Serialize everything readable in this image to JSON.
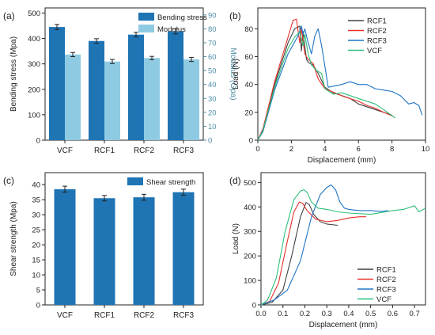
{
  "colors": {
    "bending": "#1f74b4",
    "modulus": "#8ecbe2",
    "modulus_axis": "#4f8ea6",
    "shear": "#1f74b4",
    "RCF1": "#404040",
    "RCF2": "#e8302a",
    "RCF3": "#1f74c4",
    "VCF": "#2fc07a"
  },
  "chart_data": [
    {
      "panel": "(a)",
      "type": "bar",
      "categories": [
        "VCF",
        "RCF1",
        "RCF2",
        "RCF3"
      ],
      "xlabel": "",
      "ylabel": "Bending stress (Mpa)",
      "ylabel2": "Modulus (Gpa)",
      "ylim": [
        0,
        520
      ],
      "y2lim": [
        0,
        95
      ],
      "yticks": [
        0,
        100,
        200,
        300,
        400,
        500
      ],
      "y2ticks": [
        0,
        10,
        20,
        30,
        40,
        50,
        60,
        70,
        80,
        90
      ],
      "legend_placement": "top-right",
      "series": [
        {
          "name": "Bending stress",
          "axis": "left",
          "values": [
            445,
            390,
            415,
            428
          ],
          "errors": [
            10,
            9,
            9,
            10
          ]
        },
        {
          "name": "Modulus",
          "axis": "right",
          "values": [
            61.5,
            56.5,
            59,
            58
          ],
          "errors": [
            1.5,
            1.5,
            1.2,
            1.5
          ]
        }
      ]
    },
    {
      "panel": "(b)",
      "type": "line",
      "xlabel": "Displacement (mm)",
      "ylabel": "Load (N)",
      "xlim": [
        0,
        10
      ],
      "ylim": [
        0,
        95
      ],
      "xticks": [
        0,
        2,
        4,
        6,
        8,
        10
      ],
      "yticks": [
        0,
        20,
        40,
        60,
        80
      ],
      "legend_placement": "top-right",
      "series": [
        {
          "name": "RCF1",
          "x": [
            0,
            0.3,
            1,
            1.8,
            2.2,
            2.5,
            2.6,
            2.7,
            2.9,
            3.0,
            3.3,
            3.6,
            4.0,
            4.5,
            5,
            5.5,
            6,
            6.5,
            7,
            7.5,
            8
          ],
          "y": [
            0,
            8,
            40,
            70,
            80,
            82,
            64,
            78,
            58,
            56,
            54,
            48,
            38,
            34,
            32,
            30,
            26,
            24,
            22,
            20,
            18
          ]
        },
        {
          "name": "RCF2",
          "x": [
            0,
            0.3,
            1,
            1.8,
            2.1,
            2.3,
            2.5,
            2.6,
            2.8,
            3.0,
            3.3,
            3.6,
            4.0,
            4.6,
            5.2,
            6,
            6.5,
            7,
            7.5,
            8.1
          ],
          "y": [
            0,
            8,
            42,
            74,
            86,
            87,
            70,
            80,
            62,
            58,
            55,
            44,
            37,
            34,
            31,
            28,
            25,
            23,
            20,
            17
          ]
        },
        {
          "name": "RCF3",
          "x": [
            0,
            0.3,
            1,
            1.8,
            2.4,
            2.6,
            2.7,
            2.8,
            3.0,
            3.2,
            3.4,
            3.6,
            3.8,
            4.2,
            5,
            5.5,
            6,
            6.5,
            7,
            7.5,
            8,
            8.5,
            9,
            9.3,
            9.6,
            9.8
          ],
          "y": [
            0,
            6,
            36,
            62,
            75,
            82,
            76,
            80,
            70,
            62,
            75,
            80,
            68,
            38,
            40,
            42,
            40,
            40,
            37,
            36,
            35,
            32,
            26,
            27,
            25,
            18
          ]
        },
        {
          "name": "VCF",
          "x": [
            0,
            0.3,
            1,
            1.8,
            2.2,
            2.5,
            2.7,
            2.8,
            3.0,
            3.2,
            3.5,
            3.8,
            4.0,
            4.5,
            5,
            5.5,
            6,
            7,
            7.5,
            8.2
          ],
          "y": [
            0,
            7,
            38,
            66,
            74,
            78,
            68,
            76,
            62,
            54,
            50,
            48,
            37,
            33,
            34,
            32,
            30,
            26,
            22,
            16
          ]
        }
      ]
    },
    {
      "panel": "(c)",
      "type": "bar",
      "categories": [
        "VCF",
        "RCF1",
        "RCF2",
        "RCF3"
      ],
      "xlabel": "",
      "ylabel": "Shear strength (Mpa)",
      "ylim": [
        0,
        44
      ],
      "yticks": [
        0,
        5,
        10,
        15,
        20,
        25,
        30,
        35,
        40
      ],
      "legend_placement": "top-right",
      "series": [
        {
          "name": "Shear strength",
          "values": [
            38.5,
            35.5,
            35.8,
            37.5
          ],
          "errors": [
            1.0,
            0.9,
            1.0,
            1.0
          ]
        }
      ]
    },
    {
      "panel": "(d)",
      "type": "line",
      "xlabel": "Displacement (mm)",
      "ylabel": "Load (N)",
      "xlim": [
        0,
        0.75
      ],
      "ylim": [
        0,
        540
      ],
      "xticks": [
        0.0,
        0.1,
        0.2,
        0.3,
        0.4,
        0.5,
        0.6,
        0.7
      ],
      "xtick_labels": [
        "0.0",
        "0.1",
        "0.2",
        "0.3",
        "0.4",
        "0.5",
        "0.6",
        "0.7"
      ],
      "yticks": [
        0,
        100,
        200,
        300,
        400,
        500
      ],
      "legend_placement": "bottom-right",
      "series": [
        {
          "name": "RCF1",
          "x": [
            0,
            0.05,
            0.1,
            0.14,
            0.18,
            0.205,
            0.22,
            0.24,
            0.27,
            0.3,
            0.35
          ],
          "y": [
            0,
            10,
            60,
            200,
            360,
            418,
            410,
            370,
            340,
            330,
            325
          ]
        },
        {
          "name": "RCF2",
          "x": [
            0,
            0.04,
            0.08,
            0.12,
            0.15,
            0.175,
            0.19,
            0.21,
            0.25,
            0.3,
            0.35,
            0.4,
            0.45,
            0.48
          ],
          "y": [
            0,
            15,
            90,
            260,
            380,
            420,
            415,
            385,
            350,
            340,
            345,
            355,
            360,
            360
          ]
        },
        {
          "name": "RCF3",
          "x": [
            0,
            0.06,
            0.12,
            0.18,
            0.23,
            0.27,
            0.3,
            0.32,
            0.34,
            0.36,
            0.38,
            0.4,
            0.45,
            0.5,
            0.55,
            0.58
          ],
          "y": [
            0,
            20,
            60,
            180,
            360,
            450,
            480,
            490,
            470,
            420,
            395,
            390,
            385,
            385,
            382,
            385
          ]
        },
        {
          "name": "VCF",
          "x": [
            0,
            0.03,
            0.07,
            0.11,
            0.15,
            0.18,
            0.195,
            0.21,
            0.23,
            0.26,
            0.3,
            0.35,
            0.4,
            0.5,
            0.6,
            0.65,
            0.7,
            0.72,
            0.75
          ],
          "y": [
            0,
            20,
            110,
            300,
            430,
            465,
            470,
            460,
            420,
            395,
            390,
            380,
            375,
            370,
            385,
            390,
            405,
            380,
            395
          ]
        }
      ]
    }
  ]
}
